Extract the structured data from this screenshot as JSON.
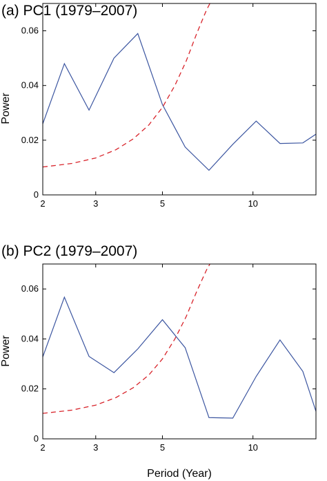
{
  "chart_data": [
    {
      "type": "line",
      "title": "(a) PC1 (1979–2007)",
      "xlabel": "",
      "ylabel": "Power",
      "xscale": "log",
      "xlim": [
        2,
        16.2
      ],
      "ylim": [
        0,
        0.07
      ],
      "xticks": [
        2,
        3,
        5,
        10
      ],
      "yticks": [
        0,
        0.02,
        0.04,
        0.06
      ],
      "ytick_labels": [
        "0",
        "0.02",
        "0.04",
        "0.06"
      ],
      "grid": false,
      "series": [
        {
          "style": "solid",
          "color": "#3b55a0",
          "x": [
            2.0,
            2.36,
            2.85,
            3.45,
            4.14,
            5.0,
            5.95,
            7.14,
            8.57,
            10.25,
            12.3,
            14.65,
            16.2
          ],
          "y": [
            0.026,
            0.048,
            0.031,
            0.05,
            0.059,
            0.033,
            0.0175,
            0.009,
            0.0185,
            0.027,
            0.0188,
            0.019,
            0.0222
          ]
        },
        {
          "style": "dashed",
          "color": "#d8232a",
          "x": [
            2.0,
            2.5,
            3.0,
            3.5,
            4.0,
            4.5,
            5.0,
            5.5,
            6.0,
            6.5,
            7.0,
            7.35
          ],
          "y": [
            0.0102,
            0.0115,
            0.0135,
            0.0165,
            0.0205,
            0.0255,
            0.032,
            0.04,
            0.049,
            0.059,
            0.0675,
            0.072
          ]
        }
      ]
    },
    {
      "type": "line",
      "title": "(b) PC2 (1979–2007)",
      "xlabel": "Period (Year)",
      "ylabel": "Power",
      "xscale": "log",
      "xlim": [
        2,
        16.2
      ],
      "ylim": [
        0,
        0.07
      ],
      "xticks": [
        2,
        3,
        5,
        10
      ],
      "yticks": [
        0,
        0.02,
        0.04,
        0.06
      ],
      "ytick_labels": [
        "0",
        "0.02",
        "0.04",
        "0.06"
      ],
      "grid": false,
      "series": [
        {
          "style": "solid",
          "color": "#3b55a0",
          "x": [
            2.0,
            2.36,
            2.85,
            3.45,
            4.14,
            5.0,
            5.95,
            7.14,
            8.57,
            10.25,
            12.3,
            14.65,
            16.2
          ],
          "y": [
            0.0328,
            0.0567,
            0.033,
            0.0265,
            0.036,
            0.0477,
            0.0365,
            0.0085,
            0.0083,
            0.025,
            0.0396,
            0.027,
            0.011
          ]
        },
        {
          "style": "dashed",
          "color": "#d8232a",
          "x": [
            2.0,
            2.5,
            3.0,
            3.5,
            4.0,
            4.5,
            5.0,
            5.5,
            6.0,
            6.5,
            7.0,
            7.35
          ],
          "y": [
            0.0102,
            0.0115,
            0.0135,
            0.0165,
            0.0205,
            0.0255,
            0.032,
            0.04,
            0.049,
            0.059,
            0.0675,
            0.072
          ]
        }
      ]
    }
  ]
}
